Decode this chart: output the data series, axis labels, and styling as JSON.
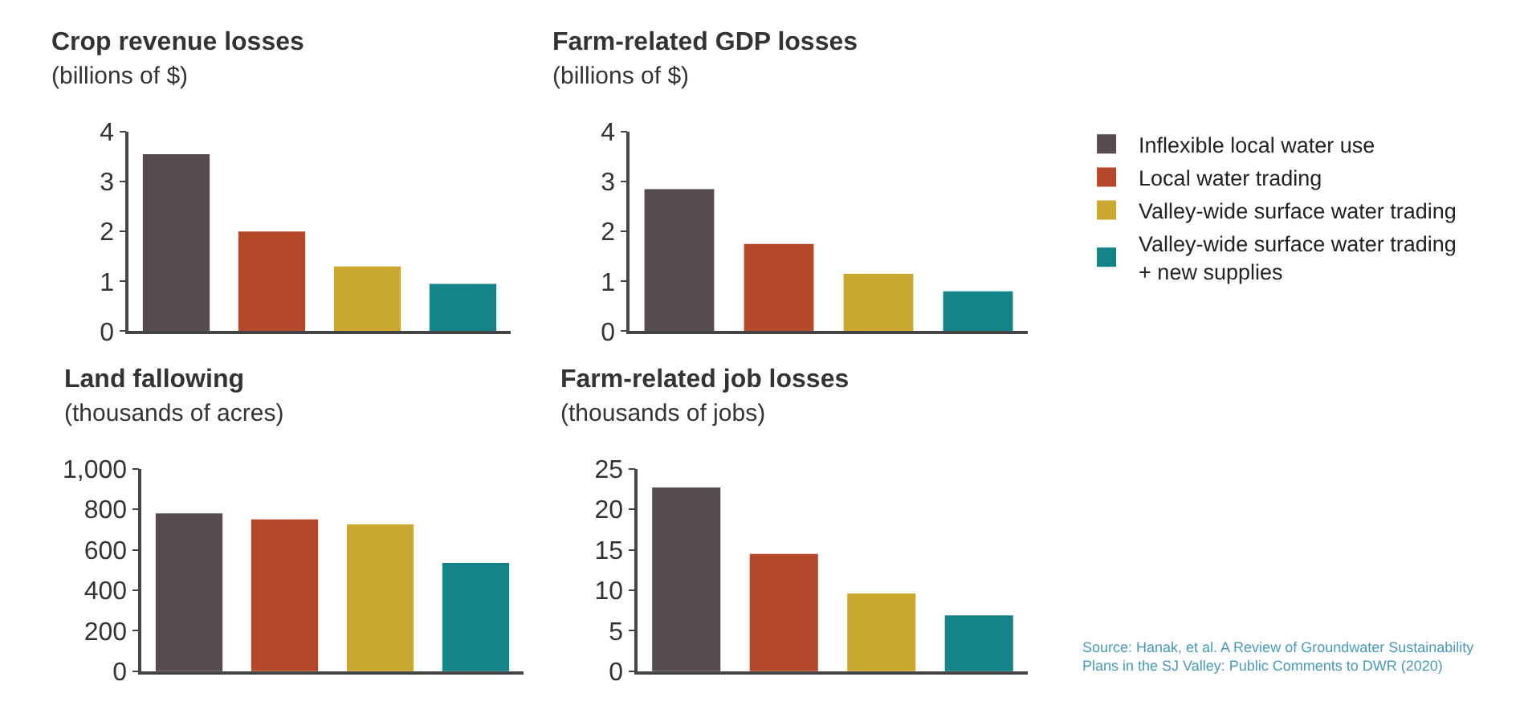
{
  "chart_data": [
    {
      "type": "bar",
      "title": "Crop revenue losses",
      "subtitle": "(billions of $)",
      "categories": [
        null,
        null,
        null,
        null
      ],
      "legend": "right",
      "series": [
        {
          "name": "Inflexible local water use",
          "color": "#564b50",
          "values": [
            3.55,
            null,
            null,
            null
          ]
        },
        {
          "name": "Local water trading",
          "color": "#b5482a",
          "values": [
            null,
            2.0,
            null,
            null
          ]
        },
        {
          "name": "Valley-wide surface water trading",
          "color": "#cba92e",
          "values": [
            null,
            null,
            1.3,
            null
          ]
        },
        {
          "name": "Valley-wide surface water trading\n+ new supplies",
          "color": "#148388",
          "values": [
            null,
            null,
            null,
            0.95
          ]
        }
      ],
      "ylim": [
        0,
        4
      ],
      "yticks": [
        0,
        1,
        2,
        3,
        4
      ]
    },
    {
      "type": "bar",
      "title": "Farm-related GDP losses",
      "subtitle": "(billions of $)",
      "categories": [
        null,
        null,
        null,
        null
      ],
      "series": [
        {
          "color": "#564b50",
          "values": [
            2.85,
            null,
            null,
            null
          ]
        },
        {
          "color": "#b5482a",
          "values": [
            null,
            1.75,
            null,
            null
          ]
        },
        {
          "color": "#cba92e",
          "values": [
            null,
            null,
            1.15,
            null
          ]
        },
        {
          "color": "#148388",
          "values": [
            null,
            null,
            null,
            0.8
          ]
        }
      ],
      "ylim": [
        0,
        4
      ],
      "yticks": [
        0,
        1,
        2,
        3,
        4
      ]
    },
    {
      "type": "bar",
      "title": "Land fallowing",
      "subtitle": "(thousands of acres)",
      "categories": [
        null,
        null,
        null,
        null
      ],
      "series": [
        {
          "color": "#564b50",
          "values": [
            780,
            null,
            null,
            null
          ]
        },
        {
          "color": "#b5482a",
          "values": [
            null,
            750,
            null,
            null
          ]
        },
        {
          "color": "#cba92e",
          "values": [
            null,
            null,
            725,
            null
          ]
        },
        {
          "color": "#148388",
          "values": [
            null,
            null,
            null,
            535
          ]
        }
      ],
      "ylim": [
        0,
        1000
      ],
      "yticks": [
        0,
        200,
        400,
        600,
        800,
        {
          "value": 1000,
          "label": "1,000"
        }
      ]
    },
    {
      "type": "bar",
      "title": "Farm-related job losses",
      "subtitle": "(thousands of jobs)",
      "categories": [
        null,
        null,
        null,
        null
      ],
      "series": [
        {
          "color": "#564b50",
          "values": [
            22.7,
            null,
            null,
            null
          ]
        },
        {
          "color": "#b5482a",
          "values": [
            null,
            14.5,
            null,
            null
          ]
        },
        {
          "color": "#cba92e",
          "values": [
            null,
            null,
            9.6,
            null
          ]
        },
        {
          "color": "#148388",
          "values": [
            null,
            null,
            null,
            6.9
          ]
        }
      ],
      "ylim": [
        0,
        25
      ],
      "yticks": [
        0,
        5,
        10,
        15,
        20,
        25
      ],
      "annotations": [
        "Source: Hanak, et al. A Review of Groundwater Sustainability\nPlans in the SJ Valley: Public Comments to DWR (2020)"
      ]
    }
  ]
}
